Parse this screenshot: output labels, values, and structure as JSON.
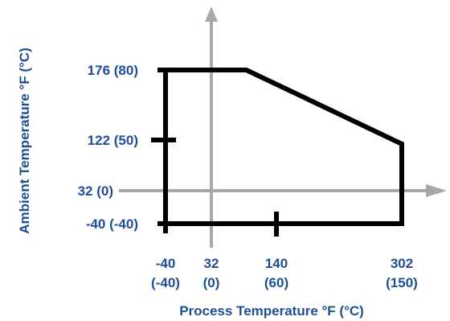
{
  "chart_data": {
    "type": "line",
    "title": "",
    "xlabel": "Process Temperature °F (°C)",
    "ylabel": "Ambient Temperature °F (°C)",
    "x_unit": "°F",
    "y_unit": "°F",
    "x_ticks": [
      {
        "value": -40,
        "line1": "-40",
        "line2": "(-40)"
      },
      {
        "value": 32,
        "line1": "32",
        "line2": "(0)"
      },
      {
        "value": 140,
        "line1": "140",
        "line2": "(60)"
      },
      {
        "value": 302,
        "line1": "302",
        "line2": "(150)"
      }
    ],
    "y_ticks": [
      {
        "value": 176,
        "label": "176 (80)"
      },
      {
        "value": 122,
        "label": "122 (50)"
      },
      {
        "value": 32,
        "label": "32 (0)"
      },
      {
        "value": -40,
        "label": "-40 (-40)"
      }
    ],
    "series": [
      {
        "x": [
          -40,
          -40,
          90,
          302,
          302,
          -40
        ],
        "y": [
          -40,
          176,
          176,
          115,
          -40,
          -40
        ]
      }
    ],
    "colors": {
      "envelope": "#000000",
      "axes": "#a8a8a8",
      "labels": "#1f4e96"
    }
  }
}
